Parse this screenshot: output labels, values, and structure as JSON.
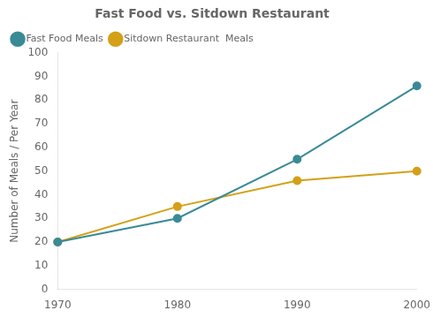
{
  "chart_data": {
    "type": "line",
    "title": "Fast Food vs. Sitdown Restaurant",
    "ylabel": "Number of Meals / Per Year",
    "x": [
      1970,
      1980,
      1990,
      2000
    ],
    "series": [
      {
        "name": "Fast Food Meals",
        "color": "#3a8a96",
        "values": [
          20,
          30,
          55,
          86
        ],
        "marker": "circle"
      },
      {
        "name": "Sitdown Restaurant  Meals",
        "color": "#d4a017",
        "values": [
          20,
          35,
          46,
          50
        ],
        "marker": "circle"
      }
    ],
    "xlim": [
      1970,
      2000
    ],
    "xticks": [
      1970,
      1980,
      1990,
      2000
    ],
    "ylim": [
      0,
      100
    ],
    "yticks": [
      0,
      10,
      20,
      30,
      40,
      50,
      60,
      70,
      80,
      90,
      100
    ],
    "grid": false,
    "legend": "upper left"
  }
}
